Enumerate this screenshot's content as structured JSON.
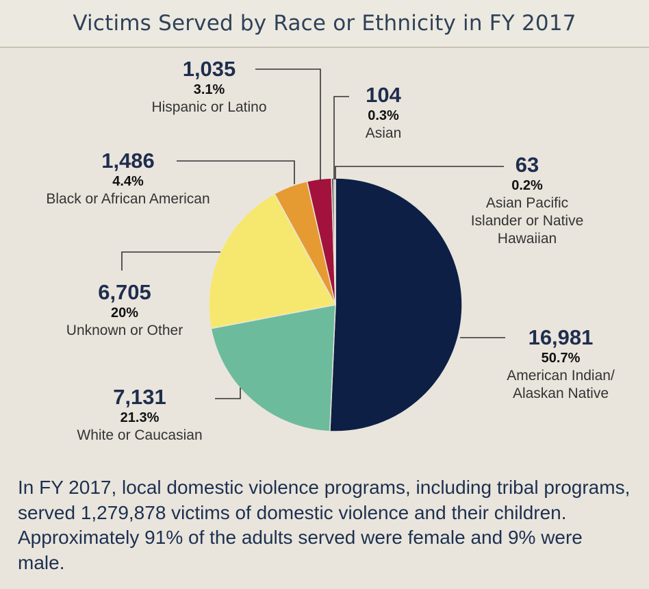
{
  "header": {
    "title": "Victims Served by Race or Ethnicity in FY 2017"
  },
  "caption": "In FY 2017, local domestic violence programs, including tribal programs, served 1,279,878 victims of domestic violence and their children. Approximately 91% of the adults served were female and 9% were male.",
  "chart_data": {
    "type": "pie",
    "title": "Victims Served by Race or Ethnicity in FY 2017",
    "slices": [
      {
        "label": "American Indian/ Alaskan Native",
        "label_lines": [
          "American Indian/",
          "Alaskan Native"
        ],
        "count": "16,981",
        "value": 50.7,
        "percent": "50.7%",
        "color": "#0d1f45"
      },
      {
        "label": "White or Caucasian",
        "label_lines": [
          "White or Caucasian"
        ],
        "count": "7,131",
        "value": 21.3,
        "percent": "21.3%",
        "color": "#6dbb9d"
      },
      {
        "label": "Unknown or Other",
        "label_lines": [
          "Unknown or Other"
        ],
        "count": "6,705",
        "value": 20,
        "percent": "20%",
        "color": "#f6e86e"
      },
      {
        "label": "Black or African American",
        "label_lines": [
          "Black or African American"
        ],
        "count": "1,486",
        "value": 4.4,
        "percent": "4.4%",
        "color": "#e69a32"
      },
      {
        "label": "Hispanic or Latino",
        "label_lines": [
          "Hispanic or Latino"
        ],
        "count": "1,035",
        "value": 3.1,
        "percent": "3.1%",
        "color": "#a3123c"
      },
      {
        "label": "Asian",
        "label_lines": [
          "Asian"
        ],
        "count": "104",
        "value": 0.3,
        "percent": "0.3%",
        "color": "#555555"
      },
      {
        "label": "Asian Pacific Islander or Native Hawaiian",
        "label_lines": [
          "Asian Pacific",
          "Islander or Native",
          "Hawaiian"
        ],
        "count": "63",
        "value": 0.2,
        "percent": "0.2%",
        "color": "#8aa3c0"
      }
    ]
  }
}
